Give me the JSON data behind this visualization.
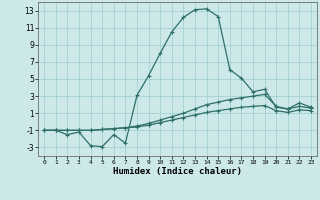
{
  "xlabel": "Humidex (Indice chaleur)",
  "background_color": "#cce8e8",
  "grid_color": "#9ecece",
  "line_color": "#2e7068",
  "xlim": [
    -0.5,
    23.5
  ],
  "ylim": [
    -4,
    14
  ],
  "yticks": [
    -3,
    -1,
    1,
    3,
    5,
    7,
    9,
    11,
    13
  ],
  "xticks": [
    0,
    1,
    2,
    3,
    4,
    5,
    6,
    7,
    8,
    9,
    10,
    11,
    12,
    13,
    14,
    15,
    16,
    17,
    18,
    19,
    20,
    21,
    22,
    23
  ],
  "line1_x": [
    0,
    1,
    2,
    3,
    4,
    5,
    6,
    7,
    8,
    9,
    10,
    11,
    12,
    13,
    14,
    15,
    16,
    17,
    18,
    19,
    20,
    21,
    22,
    23
  ],
  "line1_y": [
    -1.0,
    -1.0,
    -1.5,
    -1.2,
    -2.8,
    -2.9,
    -1.5,
    -2.5,
    3.1,
    5.4,
    8.0,
    10.5,
    12.2,
    13.1,
    13.2,
    12.3,
    6.1,
    5.1,
    3.5,
    3.8,
    1.7,
    1.5,
    2.2,
    1.7
  ],
  "line2_x": [
    0,
    1,
    2,
    3,
    4,
    5,
    6,
    7,
    8,
    9,
    10,
    11,
    12,
    13,
    14,
    15,
    16,
    17,
    18,
    19,
    20,
    21,
    22,
    23
  ],
  "line2_y": [
    -1.0,
    -1.0,
    -1.0,
    -1.0,
    -1.0,
    -0.9,
    -0.8,
    -0.7,
    -0.5,
    -0.2,
    0.2,
    0.6,
    1.0,
    1.5,
    2.0,
    2.3,
    2.6,
    2.8,
    3.0,
    3.2,
    1.8,
    1.5,
    1.8,
    1.6
  ],
  "line3_x": [
    0,
    1,
    2,
    3,
    4,
    5,
    6,
    7,
    8,
    9,
    10,
    11,
    12,
    13,
    14,
    15,
    16,
    17,
    18,
    19,
    20,
    21,
    22,
    23
  ],
  "line3_y": [
    -1.0,
    -1.0,
    -1.0,
    -1.0,
    -1.0,
    -0.9,
    -0.8,
    -0.7,
    -0.6,
    -0.4,
    -0.1,
    0.2,
    0.5,
    0.8,
    1.1,
    1.3,
    1.5,
    1.7,
    1.8,
    1.9,
    1.3,
    1.1,
    1.4,
    1.3
  ],
  "marker": "+",
  "markersize": 3,
  "linewidth": 0.9,
  "figsize": [
    3.2,
    2.0
  ],
  "dpi": 100
}
